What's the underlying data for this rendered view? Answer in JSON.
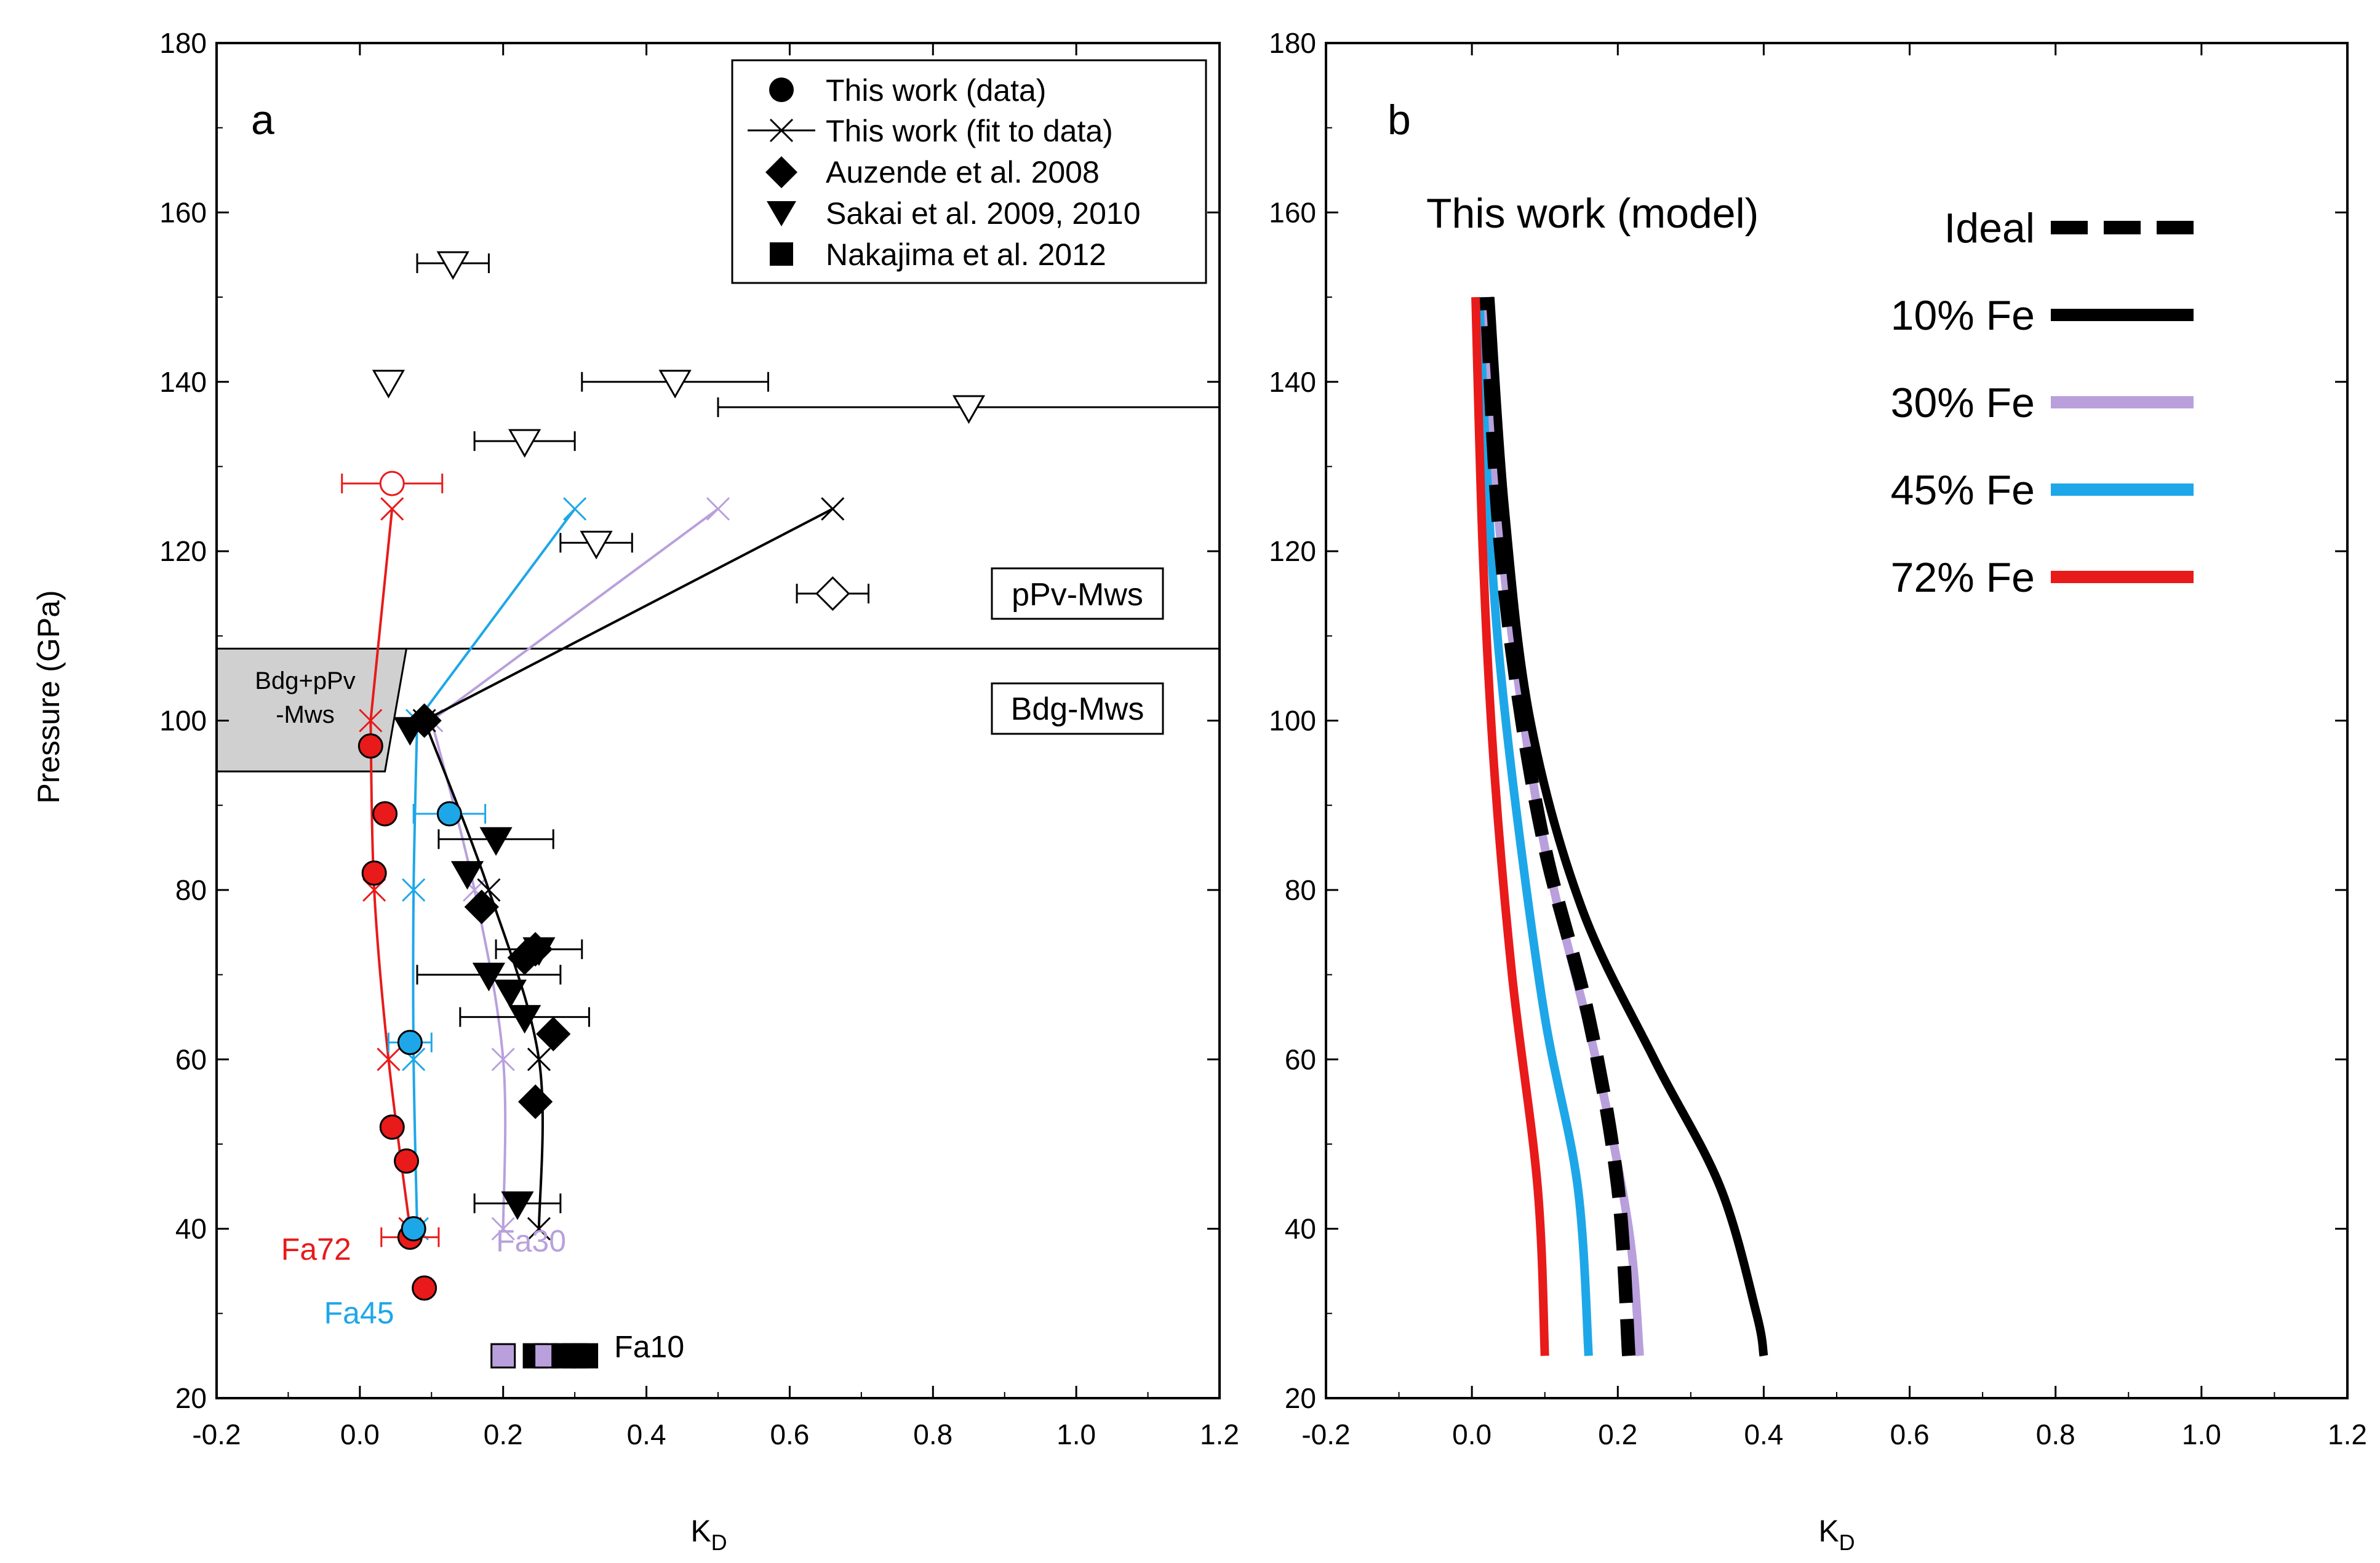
{
  "colors": {
    "black": "#000000",
    "purple": "#b9a0dc",
    "blue": "#1ea7e8",
    "red": "#e81a1a",
    "grey": "#d0d0d0"
  },
  "chart_data": [
    {
      "panel": "a",
      "type": "scatter",
      "xlabel": "K",
      "xlabel_sub": "D",
      "ylabel": "Pressure (GPa)",
      "xlim": [
        -0.2,
        1.2
      ],
      "ylim": [
        20,
        180
      ],
      "x_ticks": [
        "-0.2",
        "0.0",
        "0.2",
        "0.4",
        "0.6",
        "0.8",
        "1.0",
        "1.2"
      ],
      "y_ticks": [
        "20",
        "40",
        "60",
        "80",
        "100",
        "120",
        "140",
        "160",
        "180"
      ],
      "legend": [
        {
          "symbol": "circle",
          "label": "This work (data)"
        },
        {
          "symbol": "x-line",
          "label": "This work (fit to data)"
        },
        {
          "symbol": "diamond",
          "label": "Auzende et al. 2008"
        },
        {
          "symbol": "triangle-down",
          "label": "Sakai et al. 2009, 2010"
        },
        {
          "symbol": "square",
          "label": "Nakajima et al. 2012"
        }
      ],
      "region_labels": {
        "ppv": "pPv-Mws",
        "bdg": "Bdg-Mws",
        "mixed_line1": "Bdg+pPv",
        "mixed_line2": "-Mws"
      },
      "boundary_pressure": 108.5,
      "mixed_region": [
        [
          -0.2,
          108.5
        ],
        [
          0.065,
          108.5
        ],
        [
          0.035,
          94
        ],
        [
          -0.2,
          94
        ]
      ],
      "series_labels": [
        {
          "text": "Fa72",
          "color": "red",
          "x": -0.11,
          "y": 37.5
        },
        {
          "text": "Fa45",
          "color": "blue",
          "x": -0.05,
          "y": 30
        },
        {
          "text": "Fa30",
          "color": "purple",
          "x": 0.19,
          "y": 38.5
        },
        {
          "text": "Fa10",
          "color": "black",
          "x": 0.355,
          "y": 26
        }
      ],
      "fit_lines": [
        {
          "color": "red",
          "points": [
            [
              0.07,
              40
            ],
            [
              0.04,
              60
            ],
            [
              0.02,
              80
            ],
            [
              0.015,
              100
            ],
            [
              0.045,
              125
            ]
          ]
        },
        {
          "color": "blue",
          "points": [
            [
              0.08,
              40
            ],
            [
              0.075,
              60
            ],
            [
              0.075,
              80
            ],
            [
              0.08,
              100
            ],
            [
              0.3,
              125
            ]
          ]
        },
        {
          "color": "purple",
          "points": [
            [
              0.2,
              40
            ],
            [
              0.2,
              60
            ],
            [
              0.16,
              80
            ],
            [
              0.1,
              100
            ],
            [
              0.5,
              125
            ]
          ]
        },
        {
          "color": "black",
          "points": [
            [
              0.25,
              40
            ],
            [
              0.25,
              60
            ],
            [
              0.18,
              80
            ],
            [
              0.09,
              100
            ],
            [
              0.66,
              125
            ]
          ]
        }
      ],
      "this_work_data": [
        {
          "color": "red",
          "x": 0.015,
          "y": 97
        },
        {
          "color": "red",
          "x": 0.035,
          "y": 89
        },
        {
          "color": "red",
          "x": 0.02,
          "y": 82
        },
        {
          "color": "red",
          "x": 0.045,
          "y": 52
        },
        {
          "color": "red",
          "x": 0.065,
          "y": 48
        },
        {
          "color": "red",
          "x": 0.07,
          "y": 39,
          "err": 0.04
        },
        {
          "color": "red",
          "x": 0.09,
          "y": 33
        },
        {
          "color": "red",
          "x": 0.045,
          "y": 128,
          "err": 0.07,
          "open": true
        },
        {
          "color": "blue",
          "x": 0.125,
          "y": 89,
          "err": 0.05
        },
        {
          "color": "blue",
          "x": 0.07,
          "y": 62,
          "err": 0.03
        },
        {
          "color": "blue",
          "x": 0.075,
          "y": 40
        }
      ],
      "auzende_2008": [
        {
          "x": 0.09,
          "y": 100
        },
        {
          "x": 0.17,
          "y": 78
        },
        {
          "x": 0.23,
          "y": 72
        },
        {
          "x": 0.245,
          "y": 73
        },
        {
          "x": 0.27,
          "y": 63
        },
        {
          "x": 0.245,
          "y": 55
        },
        {
          "x": 0.66,
          "y": 115,
          "err": 0.05,
          "open": true
        }
      ],
      "sakai_2009_2010": [
        {
          "x": 0.07,
          "y": 99
        },
        {
          "x": 0.19,
          "y": 86,
          "err": 0.08
        },
        {
          "x": 0.15,
          "y": 82
        },
        {
          "x": 0.25,
          "y": 73,
          "err": 0.06
        },
        {
          "x": 0.18,
          "y": 70,
          "err": 0.1
        },
        {
          "x": 0.21,
          "y": 68
        },
        {
          "x": 0.23,
          "y": 65,
          "err": 0.09
        },
        {
          "x": 0.22,
          "y": 43,
          "err": 0.06
        },
        {
          "x": 0.13,
          "y": 154,
          "err": 0.05,
          "open": true
        },
        {
          "x": 0.04,
          "y": 140,
          "open": true
        },
        {
          "x": 0.44,
          "y": 140,
          "err": 0.13,
          "open": true
        },
        {
          "x": 0.85,
          "y": 137,
          "err": 0.35,
          "open": true
        },
        {
          "x": 0.23,
          "y": 133,
          "err": 0.07,
          "open": true
        },
        {
          "x": 0.33,
          "y": 121,
          "err": 0.05,
          "open": true
        }
      ],
      "nakajima_2012": [
        {
          "color": "purple",
          "x": 0.2,
          "y": 25
        },
        {
          "color": "black",
          "x": 0.245,
          "y": 25
        },
        {
          "color": "purple",
          "x": 0.26,
          "y": 25
        },
        {
          "color": "black",
          "x": 0.285,
          "y": 25
        },
        {
          "color": "black",
          "x": 0.3,
          "y": 25
        },
        {
          "color": "black",
          "x": 0.315,
          "y": 25
        }
      ]
    },
    {
      "panel": "b",
      "type": "line",
      "title": "This work (model)",
      "xlabel": "K",
      "xlabel_sub": "D",
      "xlim": [
        -0.2,
        1.2
      ],
      "ylim": [
        20,
        180
      ],
      "x_ticks": [
        "-0.2",
        "0.0",
        "0.2",
        "0.4",
        "0.6",
        "0.8",
        "1.0",
        "1.2"
      ],
      "y_ticks": [
        "20",
        "40",
        "60",
        "80",
        "100",
        "120",
        "140",
        "160",
        "180"
      ],
      "series": [
        {
          "name": "Ideal",
          "color": "black",
          "dashed": true,
          "points": [
            [
              0.215,
              25
            ],
            [
              0.2,
              45
            ],
            [
              0.16,
              65
            ],
            [
              0.1,
              85
            ],
            [
              0.06,
              105
            ],
            [
              0.035,
              125
            ],
            [
              0.02,
              150
            ]
          ]
        },
        {
          "name": "10% Fe",
          "color": "black",
          "points": [
            [
              0.4,
              25
            ],
            [
              0.39,
              30
            ],
            [
              0.34,
              45
            ],
            [
              0.25,
              60
            ],
            [
              0.15,
              78
            ],
            [
              0.08,
              100
            ],
            [
              0.045,
              125
            ],
            [
              0.025,
              150
            ]
          ]
        },
        {
          "name": "30% Fe",
          "color": "purple",
          "points": [
            [
              0.23,
              25
            ],
            [
              0.215,
              40
            ],
            [
              0.17,
              60
            ],
            [
              0.1,
              85
            ],
            [
              0.055,
              110
            ],
            [
              0.03,
              130
            ],
            [
              0.015,
              150
            ]
          ]
        },
        {
          "name": "45% Fe",
          "color": "blue",
          "points": [
            [
              0.16,
              25
            ],
            [
              0.145,
              45
            ],
            [
              0.1,
              65
            ],
            [
              0.06,
              90
            ],
            [
              0.035,
              110
            ],
            [
              0.02,
              130
            ],
            [
              0.01,
              150
            ]
          ]
        },
        {
          "name": "72% Fe",
          "color": "red",
          "points": [
            [
              0.1,
              25
            ],
            [
              0.09,
              45
            ],
            [
              0.055,
              70
            ],
            [
              0.03,
              95
            ],
            [
              0.015,
              120
            ],
            [
              0.005,
              150
            ]
          ]
        }
      ]
    }
  ]
}
